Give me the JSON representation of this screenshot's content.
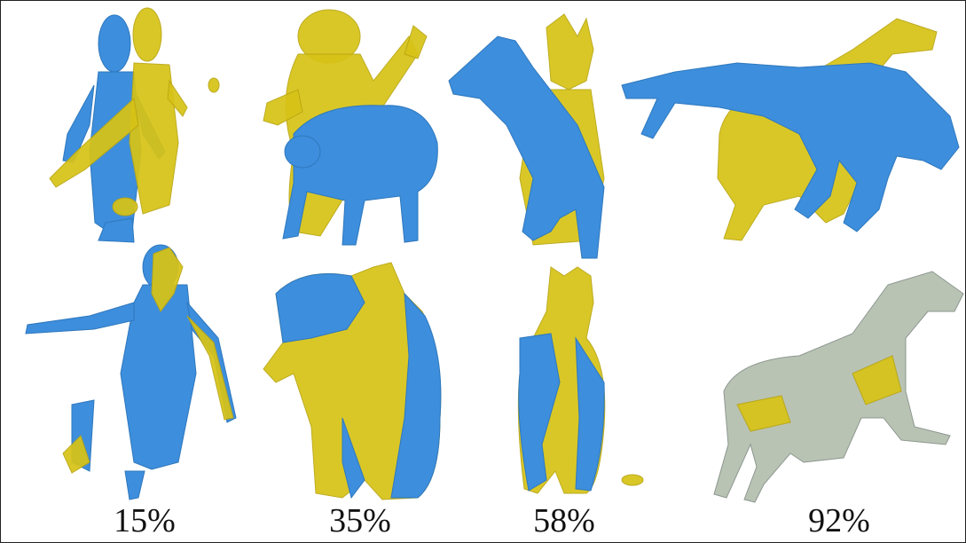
{
  "colors": {
    "source": "#3d8edc",
    "target": "#d7c317",
    "overlap": "#b9c3b4",
    "border": "#222222",
    "background": "#ffffff"
  },
  "columns": [
    {
      "caption": "15%",
      "subject": "humanoid"
    },
    {
      "caption": "35%",
      "subject": "bear"
    },
    {
      "caption": "58%",
      "subject": "dog-cat"
    },
    {
      "caption": "92%",
      "subject": "horse"
    }
  ],
  "rows": [
    "before-registration",
    "after-registration"
  ]
}
